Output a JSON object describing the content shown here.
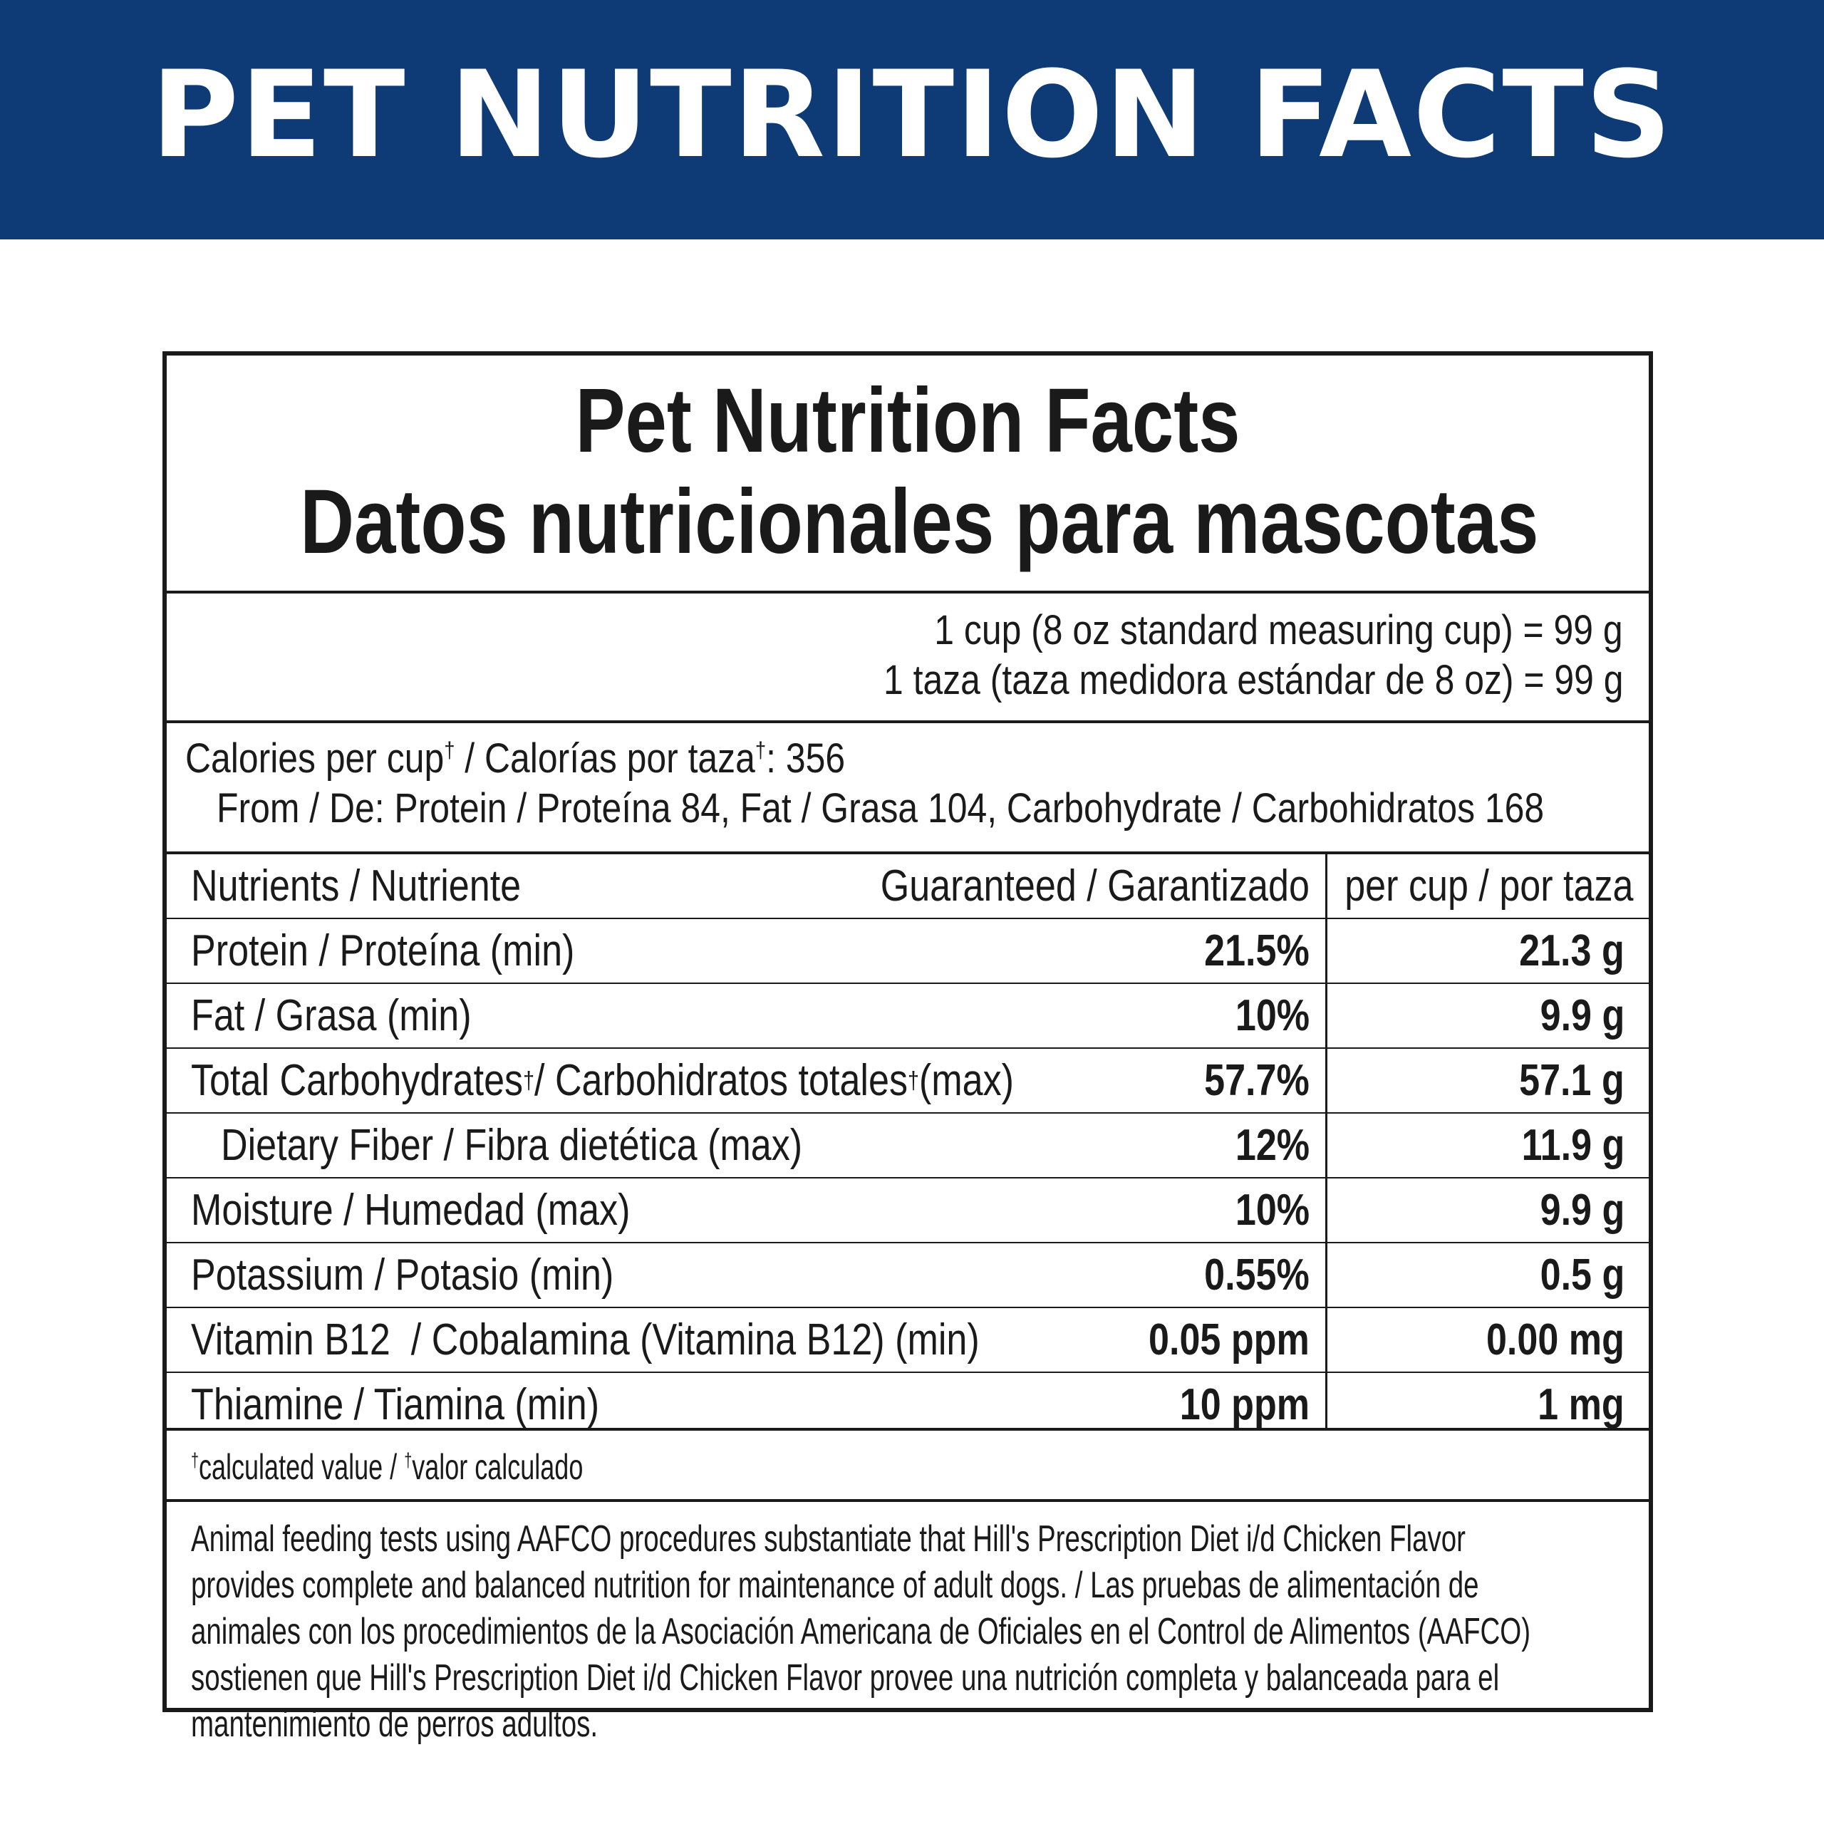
{
  "banner": {
    "title": "PET NUTRITION FACTS"
  },
  "panel": {
    "title_en": "Pet Nutrition Facts",
    "title_es": "Datos nutricionales para mascotas",
    "serving_en": "1 cup (8 oz standard measuring cup) = 99 g",
    "serving_es": "1 taza (taza medidora estándar de 8 oz) = 99 g",
    "calories": {
      "label_en": "Calories per cup",
      "label_es": " / Calorías por taza",
      "value": ": 356",
      "dagger": "†",
      "from": "From / De: Protein / Proteína 84, Fat / Grasa 104, Carbohydrate / Carbohidratos 168"
    },
    "table": {
      "headers": {
        "nutrient": "Nutrients / Nutriente",
        "guaranteed": "Guaranteed / Garantizado",
        "per_cup": "per cup / por taza"
      },
      "rows": [
        {
          "name": "Protein / Proteína (min)",
          "guaranteed": "21.5%",
          "per_cup": "21.3 g"
        },
        {
          "name": "Fat / Grasa (min)",
          "guaranteed": "10%",
          "per_cup": "9.9 g"
        },
        {
          "name_a": "Total Carbohydrates",
          "name_b": " / Carbohidratos totales",
          "name_c": " (max)",
          "dagger": "†",
          "guaranteed": "57.7%",
          "per_cup": "57.1 g"
        },
        {
          "name": "Dietary Fiber / Fibra dietética (max)",
          "guaranteed": "12%",
          "per_cup": "11.9 g"
        },
        {
          "name": "Moisture / Humedad (max)",
          "guaranteed": "10%",
          "per_cup": "9.9 g"
        },
        {
          "name": "Potassium / Potasio (min)",
          "guaranteed": "0.55%",
          "per_cup": "0.5 g"
        },
        {
          "name": "Vitamin B12  / Cobalamina (Vitamina B12) (min)",
          "guaranteed": "0.05 ppm",
          "per_cup": "0.00 mg"
        },
        {
          "name": "Thiamine / Tiamina (min)",
          "guaranteed": "10 ppm",
          "per_cup": "1 mg"
        }
      ]
    },
    "footnote": {
      "a": "calculated value / ",
      "b": "valor calculado"
    },
    "statement": "Animal feeding tests using AAFCO procedures substantiate that Hill's Prescription Diet i/d Chicken Flavor provides complete and balanced nutrition for maintenance of adult dogs. / Las pruebas de alimentación de animales con los procedimientos de la Asociación Americana de Oficiales en el Control de Alimentos (AAFCO) sostienen que Hill's Prescription Diet i/d Chicken Flavor provee una nutrición completa y balanceada para el mantenimiento de perros adultos."
  }
}
